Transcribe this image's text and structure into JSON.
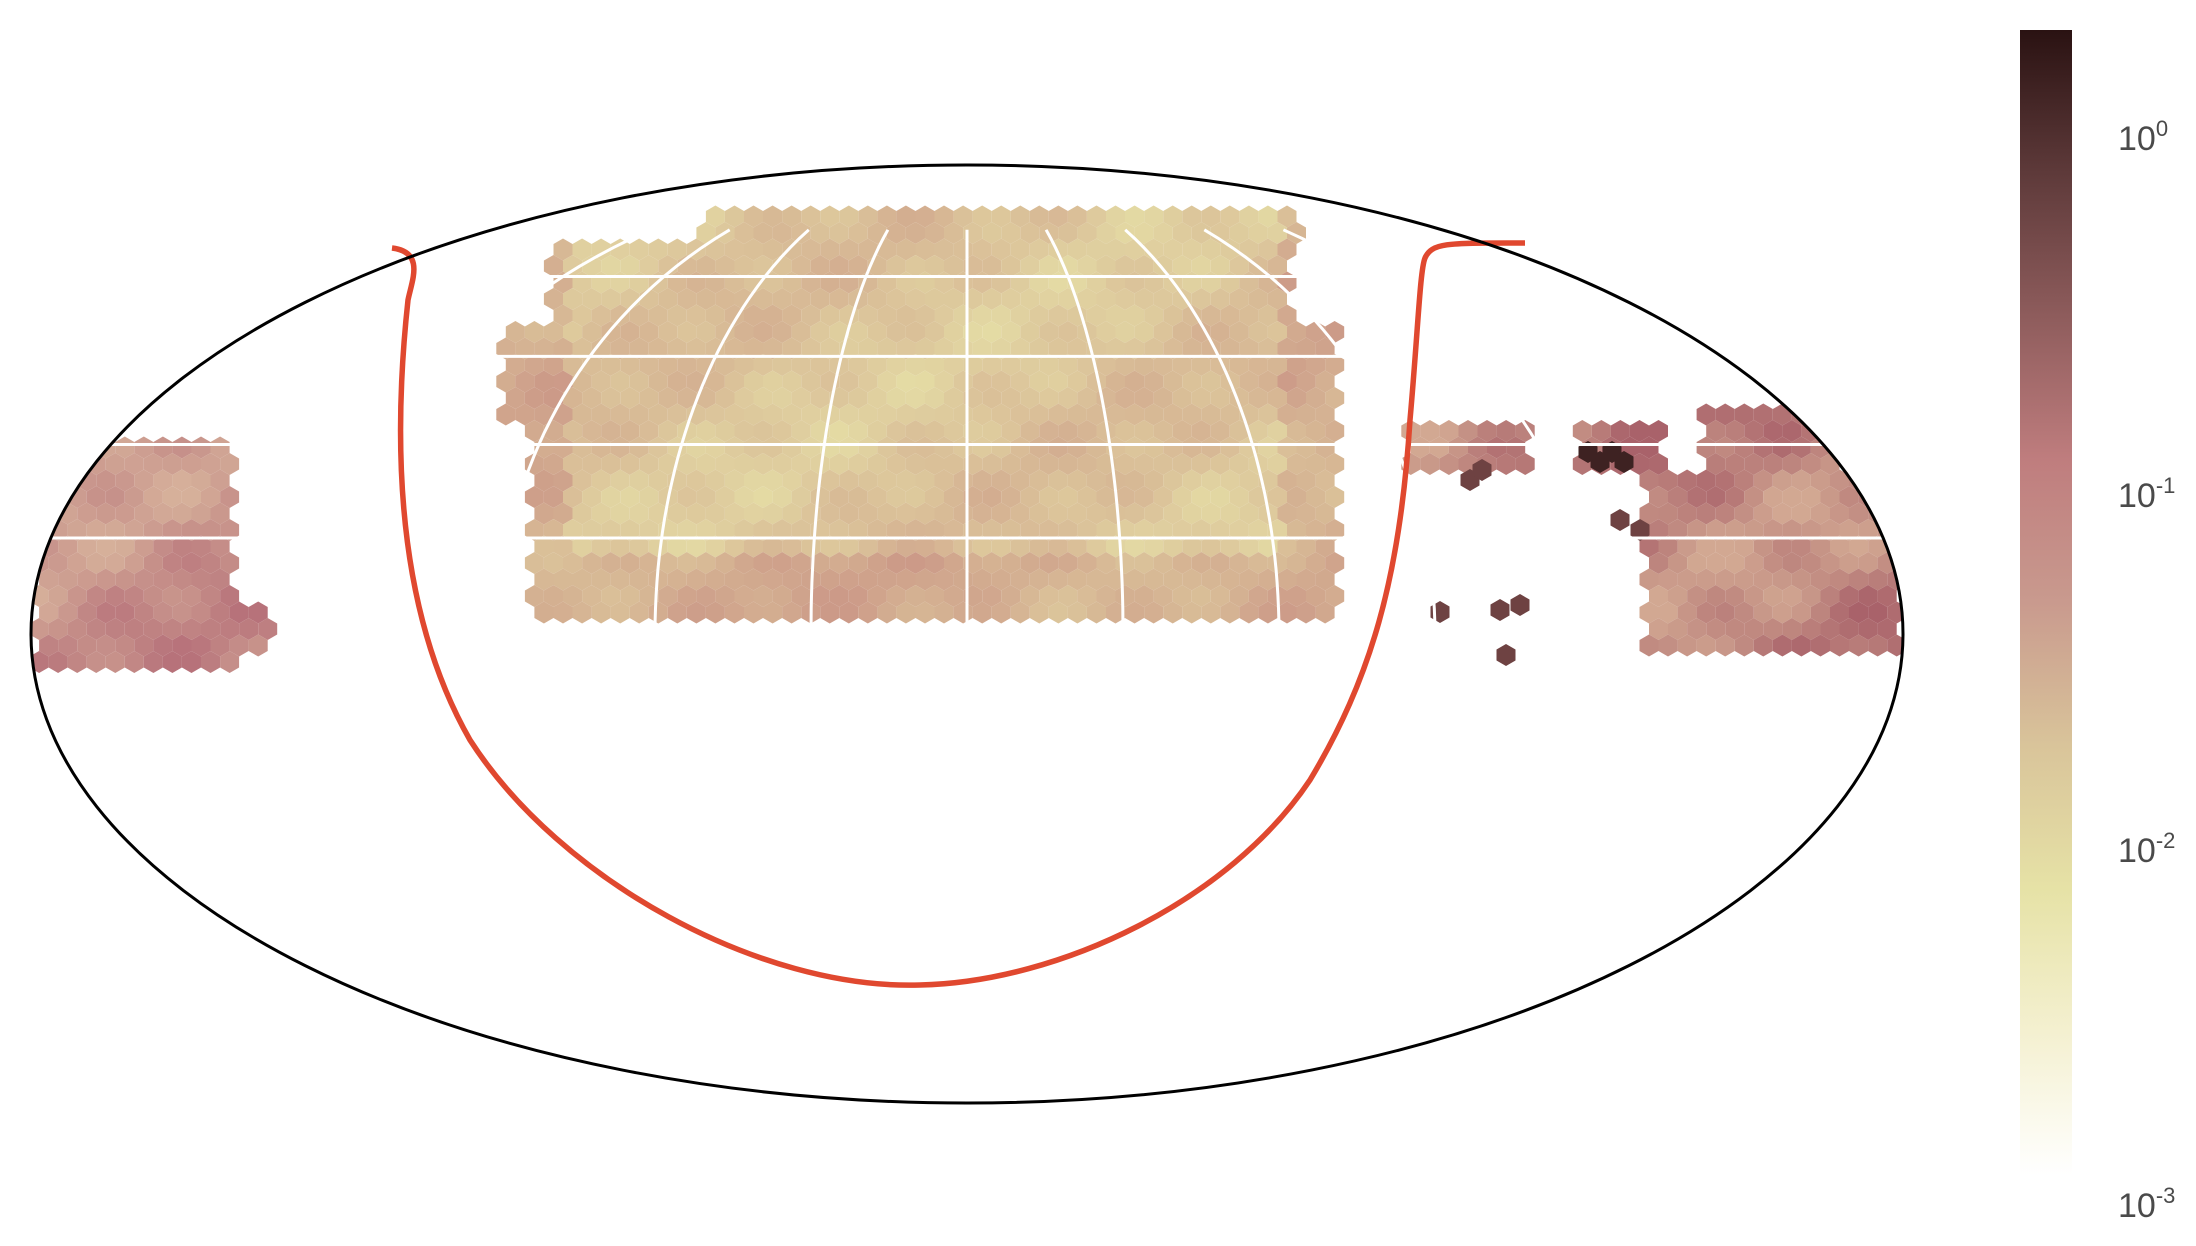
{
  "projection": "mollweide",
  "colorbar": {
    "scale": "log",
    "range": [
      0.001,
      2.0
    ],
    "colormap": [
      "#ffffff",
      "#f4f0d0",
      "#e6e2a6",
      "#d9c49a",
      "#c99a8e",
      "#bf7d7e",
      "#8e5c5c",
      "#5e3a3a",
      "#2a1212"
    ],
    "ticks": [
      {
        "value": 1,
        "base": "10",
        "exp": "0"
      },
      {
        "value": 0.1,
        "base": "10",
        "exp": "-1"
      },
      {
        "value": 0.01,
        "base": "10",
        "exp": "-2"
      },
      {
        "value": 0.001,
        "base": "10",
        "exp": "-3"
      }
    ]
  },
  "colors": {
    "outline": "#000000",
    "graticule": "#ffffff",
    "boundary_curve": "#e0482f"
  },
  "graticule": {
    "lat_lines_deg": [
      15,
      30,
      45,
      60
    ],
    "lon_lines_deg": [
      -120,
      -90,
      -60,
      -30,
      0,
      30,
      60,
      90,
      120
    ]
  }
}
